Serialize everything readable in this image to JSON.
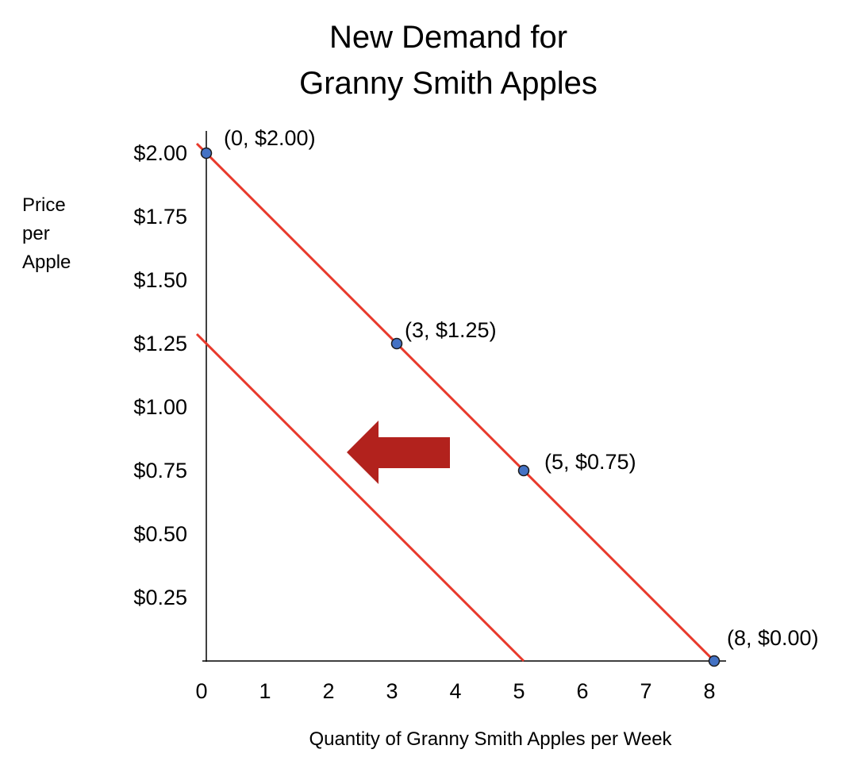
{
  "chart_data": {
    "type": "line",
    "title_lines": [
      "New Demand for",
      "Granny Smith Apples"
    ],
    "xlabel": "Quantity of Granny Smith Apples per Week",
    "ylabel_lines": [
      "Price",
      "per",
      "Apple"
    ],
    "xlim": [
      0,
      8
    ],
    "ylim": [
      0,
      2.0
    ],
    "x_ticks": [
      "0",
      "1",
      "2",
      "3",
      "4",
      "5",
      "6",
      "7",
      "8"
    ],
    "y_ticks": [
      {
        "value": 2.0,
        "label": "$2.00"
      },
      {
        "value": 1.75,
        "label": "$1.75"
      },
      {
        "value": 1.5,
        "label": "$1.50"
      },
      {
        "value": 1.25,
        "label": "$1.25"
      },
      {
        "value": 1.0,
        "label": "$1.00"
      },
      {
        "value": 0.75,
        "label": "$0.75"
      },
      {
        "value": 0.5,
        "label": "$0.50"
      },
      {
        "value": 0.25,
        "label": "$0.25"
      }
    ],
    "series": [
      {
        "x": [
          0,
          3,
          5,
          8
        ],
        "y": [
          2.0,
          1.25,
          0.75,
          0.0
        ],
        "point_labels": [
          "(0, $2.00)",
          "(3, $1.25)",
          "(5, $0.75)",
          "(8, $0.00)"
        ],
        "color": "#e8392b",
        "marker_color": "#4472c4"
      },
      {
        "x": [
          0,
          5
        ],
        "y": [
          1.25,
          0.0
        ],
        "color": "#e8392b"
      }
    ],
    "annotations": [
      {
        "type": "arrow",
        "direction": "left",
        "color": "#b2221d"
      }
    ],
    "grid": false,
    "legend": "none"
  }
}
